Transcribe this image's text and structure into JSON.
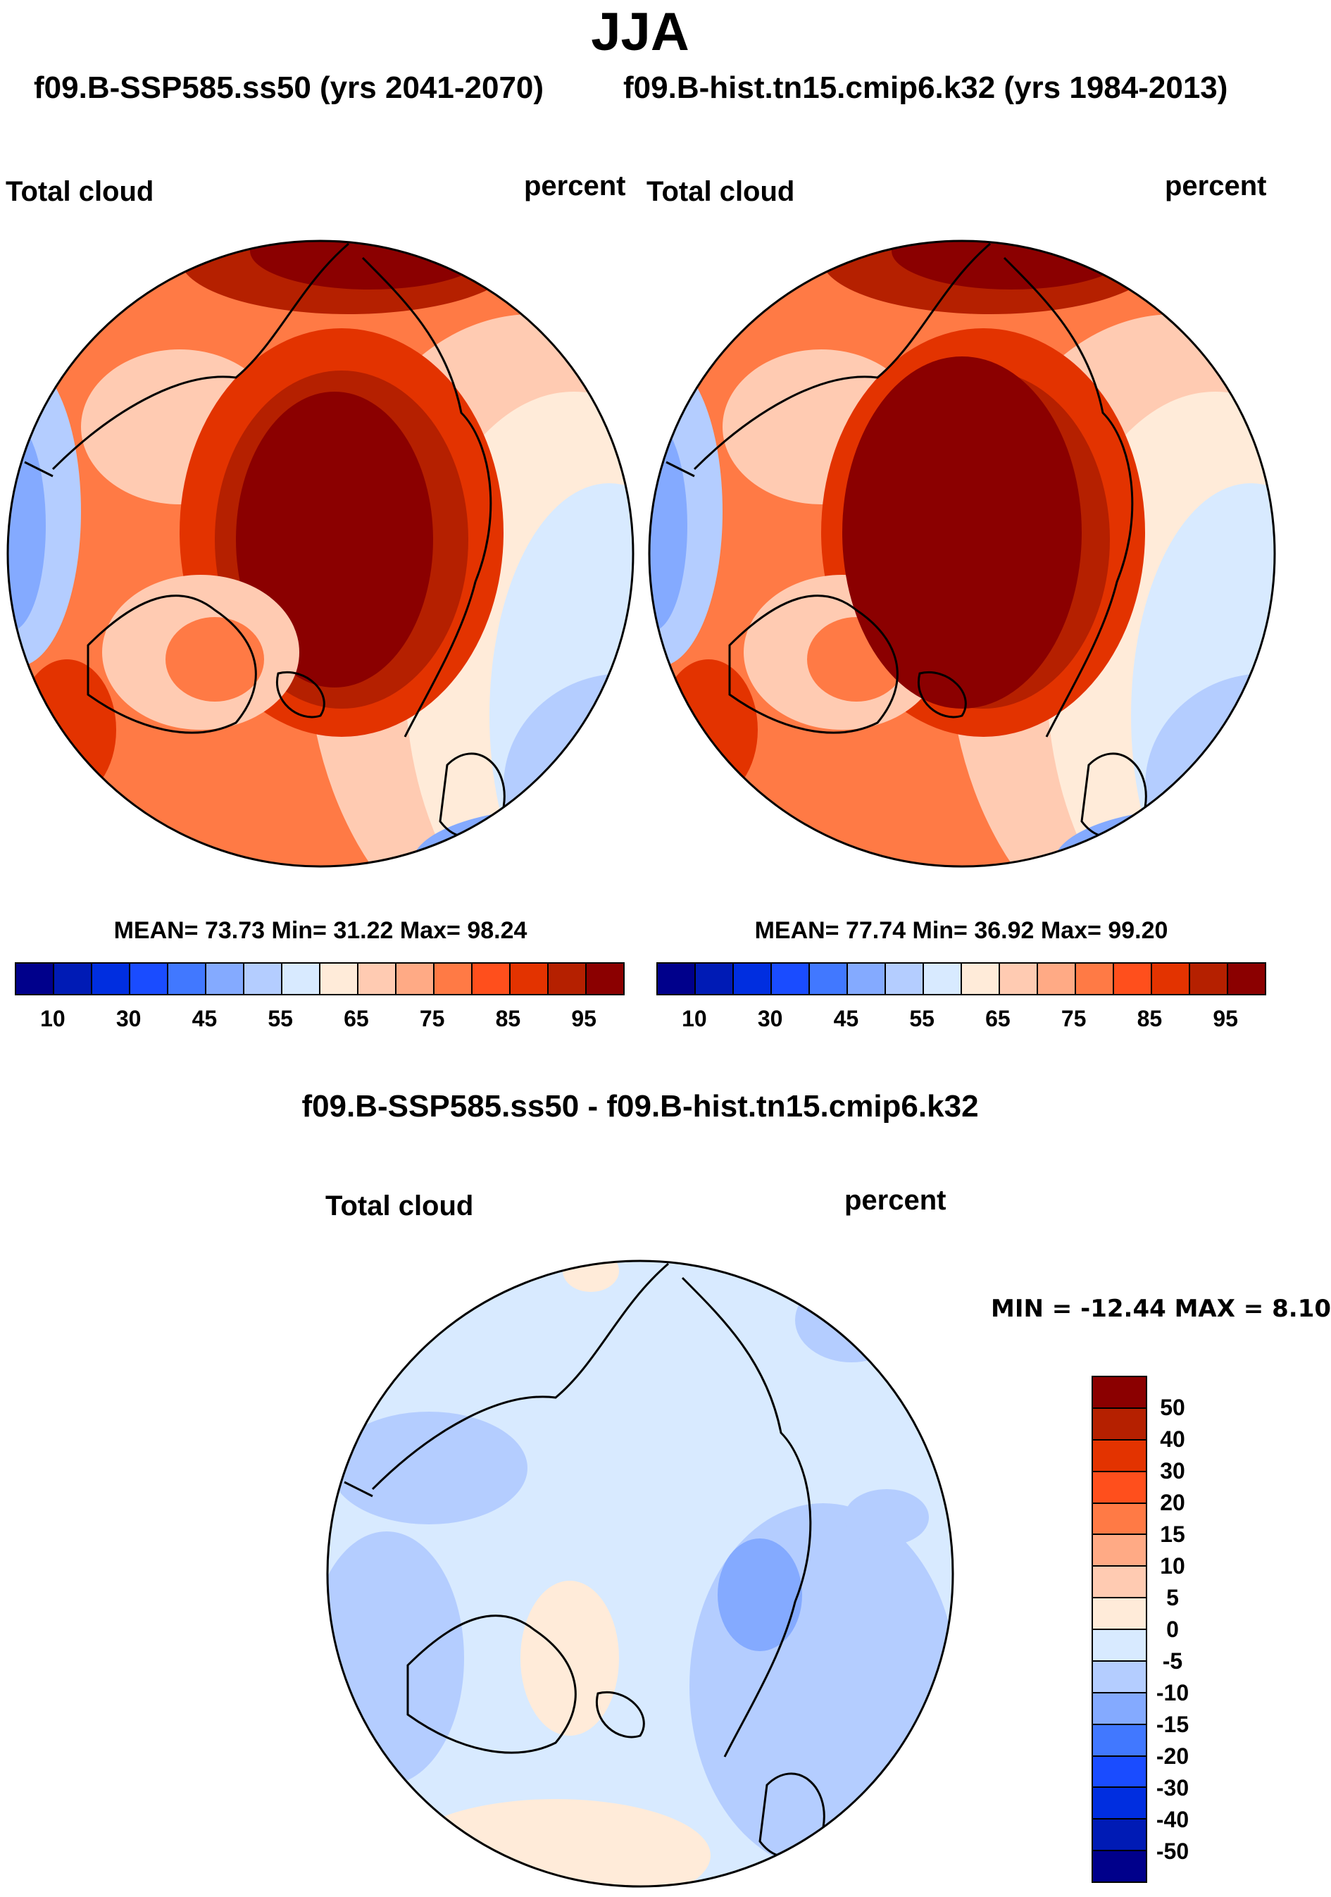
{
  "title": "JJA",
  "subtitle_left": "f09.B-SSP585.ss50 (yrs 2041-2070)",
  "subtitle_right": "f09.B-hist.tn15.cmip6.k32 (yrs 1984-2013)",
  "diff_title": "f09.B-SSP585.ss50 - f09.B-hist.tn15.cmip6.k32",
  "chart_data": [
    {
      "type": "heatmap",
      "projection": "north polar stereographic",
      "title": "Total cloud",
      "units": "percent",
      "stats": "MEAN=  73.73  Min=  31.22  Max=  98.24",
      "mean": 73.73,
      "min": 31.22,
      "max": 98.24,
      "colorbar_levels": [
        "10",
        "30",
        "45",
        "55",
        "65",
        "75",
        "85",
        "95"
      ]
    },
    {
      "type": "heatmap",
      "projection": "north polar stereographic",
      "title": "Total cloud",
      "units": "percent",
      "stats": "MEAN=  77.74  Min=  36.92  Max=  99.20",
      "mean": 77.74,
      "min": 36.92,
      "max": 99.2,
      "colorbar_levels": [
        "10",
        "30",
        "45",
        "55",
        "65",
        "75",
        "85",
        "95"
      ]
    },
    {
      "type": "heatmap",
      "projection": "north polar stereographic",
      "title": "Total cloud",
      "units": "percent",
      "stats": "MIN = -12.44 MAX =   8.10",
      "min": -12.44,
      "max": 8.1,
      "colorbar_levels": [
        "50",
        "40",
        "30",
        "20",
        "15",
        "10",
        "5",
        "0",
        "-5",
        "-10",
        "-15",
        "-20",
        "-30",
        "-40",
        "-50"
      ]
    }
  ],
  "colors": [
    "#00008b",
    "#001bb5",
    "#002ee0",
    "#1a4cff",
    "#4178ff",
    "#84aaff",
    "#b4cdff",
    "#d8eaff",
    "#ffebd9",
    "#ffcbb2",
    "#ffaa85",
    "#ff7a45",
    "#ff4f1c",
    "#e33300",
    "#b52000",
    "#8b0000"
  ]
}
